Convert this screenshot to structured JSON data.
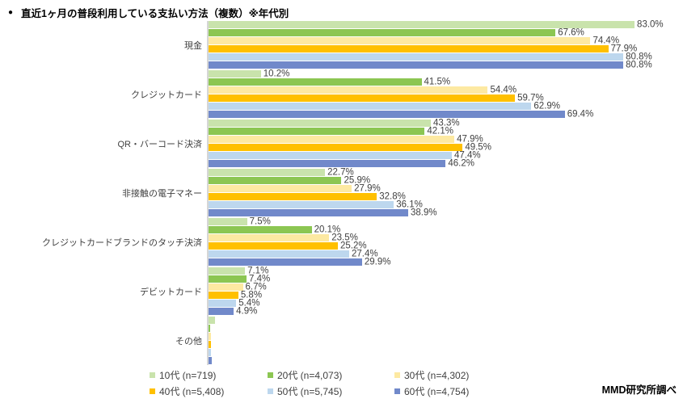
{
  "title": {
    "bullet": "●",
    "text": "直近1ヶ月の普段利用している支払い方法（複数）※年代別"
  },
  "source": "MMD研究所調べ",
  "chart_data": {
    "type": "bar",
    "orientation": "horizontal",
    "title": "直近1ヶ月の普段利用している支払い方法（複数）※年代別",
    "value_suffix": "%",
    "xlim": [
      0,
      90
    ],
    "grid": false,
    "legend_position": "bottom",
    "axis_line_color": "#d6d6d6",
    "label_color": "#404040",
    "categories": [
      "現金",
      "クレジットカード",
      "QR・バーコード決済",
      "非接触の電子マネー",
      "クレジットカードブランドのタッチ決済",
      "デビットカード",
      "その他"
    ],
    "show_value_labels_per_category": [
      true,
      true,
      true,
      true,
      true,
      true,
      false
    ],
    "series": [
      {
        "name": "10代",
        "legend_label": "10代 (n=719)",
        "color": "#c9e3ac",
        "values": [
          83.0,
          10.2,
          43.3,
          22.7,
          7.5,
          7.1,
          1.3
        ]
      },
      {
        "name": "20代",
        "legend_label": "20代 (n=4,073)",
        "color": "#8cc652",
        "values": [
          67.6,
          41.5,
          42.1,
          25.9,
          20.1,
          7.4,
          0.3
        ]
      },
      {
        "name": "30代",
        "legend_label": "30代 (n=4,302)",
        "color": "#fde9a2",
        "values": [
          74.4,
          54.4,
          47.9,
          27.9,
          23.5,
          6.7,
          0.4
        ]
      },
      {
        "name": "40代",
        "legend_label": "40代 (n=5,408)",
        "color": "#ffc000",
        "values": [
          77.9,
          59.7,
          49.5,
          32.8,
          25.2,
          5.8,
          0.5
        ]
      },
      {
        "name": "50代",
        "legend_label": "50代 (n=5,745)",
        "color": "#bdd7ee",
        "values": [
          80.8,
          62.9,
          47.4,
          36.1,
          27.4,
          5.4,
          0.4
        ]
      },
      {
        "name": "60代",
        "legend_label": "60代 (n=4,754)",
        "color": "#7189ca",
        "values": [
          80.8,
          69.4,
          46.2,
          38.9,
          29.9,
          4.9,
          0.6
        ]
      }
    ]
  }
}
